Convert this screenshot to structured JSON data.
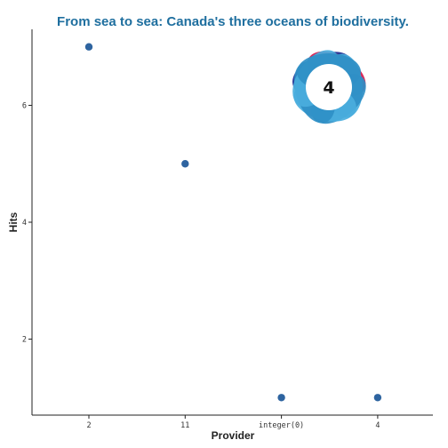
{
  "chart_data": {
    "type": "scatter",
    "title": "From sea to sea: Canada's three oceans of biodiversity.",
    "xlabel": "Provider",
    "ylabel": "Hits",
    "categories": [
      "2",
      "11",
      "integer(0)",
      "4"
    ],
    "values": [
      7,
      5,
      1,
      1
    ],
    "ylim": [
      0.7,
      7.3
    ],
    "yticks": [
      2,
      4,
      6
    ],
    "grid": false,
    "legend": "none"
  },
  "badge": {
    "score": "4",
    "icon": "altmetric-donut-icon"
  },
  "colors": {
    "title": "#1f6f9f",
    "point": "#2e64a0",
    "axis": "#222222",
    "badge_dark_blue": "#1c2a8f",
    "badge_red": "#d8174a",
    "badge_light_blue": "#4aaedd",
    "badge_mid_blue": "#2f8fc6"
  }
}
